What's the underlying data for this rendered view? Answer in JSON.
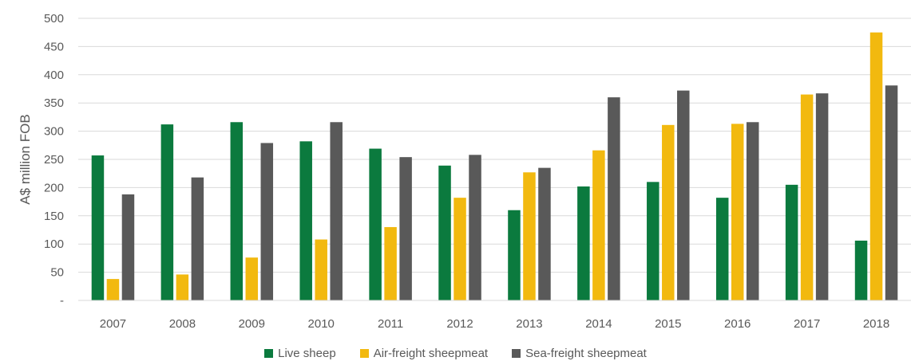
{
  "chart_data": {
    "type": "bar",
    "ylabel": "A$ million FOB",
    "xlabel": "",
    "ylim": [
      0,
      500
    ],
    "yticks": [
      {
        "value": 0,
        "label": "-"
      },
      {
        "value": 50,
        "label": "50"
      },
      {
        "value": 100,
        "label": "100"
      },
      {
        "value": 150,
        "label": "150"
      },
      {
        "value": 200,
        "label": "200"
      },
      {
        "value": 250,
        "label": "250"
      },
      {
        "value": 300,
        "label": "300"
      },
      {
        "value": 350,
        "label": "350"
      },
      {
        "value": 400,
        "label": "400"
      },
      {
        "value": 450,
        "label": "450"
      },
      {
        "value": 500,
        "label": "500"
      }
    ],
    "grid": true,
    "legend_position": "bottom",
    "categories": [
      "2007",
      "2008",
      "2009",
      "2010",
      "2011",
      "2012",
      "2013",
      "2014",
      "2015",
      "2016",
      "2017",
      "2018"
    ],
    "series": [
      {
        "name": "Live sheep",
        "color": "#0b7a3e",
        "values": [
          257,
          312,
          316,
          282,
          269,
          239,
          160,
          202,
          210,
          182,
          205,
          106
        ]
      },
      {
        "name": "Air-freight sheepmeat",
        "color": "#f2b90f",
        "values": [
          38,
          46,
          76,
          108,
          130,
          182,
          227,
          266,
          311,
          313,
          365,
          475
        ]
      },
      {
        "name": "Sea-freight sheepmeat",
        "color": "#595959",
        "values": [
          188,
          218,
          279,
          316,
          254,
          258,
          235,
          360,
          372,
          316,
          367,
          381
        ]
      }
    ]
  }
}
